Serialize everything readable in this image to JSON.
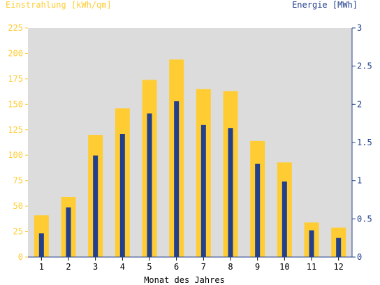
{
  "chart_data": {
    "type": "bar",
    "title": "",
    "xlabel": "Monat des Jahres",
    "ylabel_left": "Einstrahlung [kWh/qm]",
    "ylabel_right": "Energie [MWh]",
    "categories": [
      "1",
      "2",
      "3",
      "4",
      "5",
      "6",
      "7",
      "8",
      "9",
      "10",
      "11",
      "12"
    ],
    "y_left_lim": [
      0,
      225
    ],
    "y_left_ticks": [
      "0",
      "25",
      "50",
      "75",
      "100",
      "125",
      "150",
      "175",
      "200",
      "225"
    ],
    "y_right_lim": [
      0,
      3
    ],
    "y_right_ticks": [
      "0",
      "0.5",
      "1",
      "1.5",
      "2",
      "2.5",
      "3"
    ],
    "grid": false,
    "series": [
      {
        "name": "Einstrahlung [kWh/qm]",
        "axis": "left",
        "color": "#ffcc33",
        "values": [
          41,
          59,
          120,
          146,
          174,
          194,
          165,
          163,
          114,
          93,
          34,
          29
        ]
      },
      {
        "name": "Energie [MWh]",
        "axis": "right",
        "color": "#22408c",
        "values": [
          0.31,
          0.65,
          1.33,
          1.61,
          1.88,
          2.04,
          1.73,
          1.69,
          1.22,
          0.99,
          0.35,
          0.25
        ]
      }
    ]
  },
  "colors": {
    "plot_background": "#dcdcdc",
    "left_axis_text": "#ffcc33",
    "right_axis_text": "#22408c",
    "axis_line": "#22408c",
    "xlabel_text": "#000000"
  }
}
